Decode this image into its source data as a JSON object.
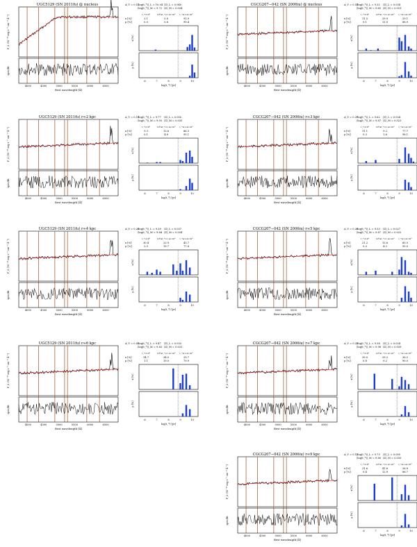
{
  "colors": {
    "observed": "#000000",
    "model": "#d01010",
    "line_mark": "#a8643c",
    "bar": "#1a3ccc"
  },
  "labels": {
    "flux_axis": "F_λ (10⁻¹⁶ erg s⁻¹ cm⁻² Å⁻¹)",
    "ratio_axis": "spec/fit",
    "wave_axis": "Rest wavelength [Å]",
    "x_pop": "x [%]",
    "mu_pop": "μ [%]",
    "age_axis": "log(t_*) [yr]",
    "bins_header": [
      "t_*<10⁸",
      "10⁸≤t_*<1.4×10⁹",
      "t_*≥1.4×10⁹"
    ]
  },
  "panels": [
    {
      "title": "UGC5129 (SN 2011fu) @ nucleus",
      "av": "A_V = 0.12",
      "ltx": "⟨log(t_*)⟩_L = 10.04",
      "ltm": "⟨log(t_*)⟩_M = 9.72",
      "zl": "⟨Z⟩_L = 0.040",
      "zm": "⟨Z⟩_M = 0.034",
      "xrow": [
        "2.1",
        "5.8",
        "91.9"
      ],
      "murow": [
        "0.0",
        "0.6",
        "99.4"
      ],
      "xbars": [
        [
          6.9,
          2
        ],
        [
          9.6,
          7
        ],
        [
          9.8,
          12
        ],
        [
          10.0,
          30
        ],
        [
          10.2,
          6
        ]
      ],
      "mubars": [
        [
          9.8,
          4
        ],
        [
          10.0,
          25
        ],
        [
          10.2,
          10
        ]
      ]
    },
    {
      "title": "CGCG207−042 (SN 2006iu) @ nucleus",
      "av": "A_V = 0.51",
      "ltx": "⟨log(t_*)⟩_L = 9.32",
      "ltm": "⟨log(t_*)⟩_M = 9.65",
      "zl": "⟨Z⟩_L = 0.034",
      "zm": "⟨Z⟩_M = 0.031",
      "xrow": [
        "11.5",
        "29.9",
        "29.1"
      ],
      "murow": [
        "0.1",
        "11.0",
        "88.9"
      ],
      "xbars": [
        [
          6.2,
          4
        ],
        [
          6.6,
          1
        ],
        [
          7.2,
          4
        ],
        [
          9.0,
          25
        ],
        [
          9.2,
          18
        ],
        [
          9.5,
          30
        ],
        [
          9.8,
          8
        ],
        [
          10.0,
          4
        ]
      ],
      "mubars": [
        [
          9.0,
          3
        ],
        [
          9.2,
          5
        ],
        [
          9.5,
          30
        ],
        [
          9.8,
          12
        ],
        [
          10.0,
          4
        ]
      ]
    },
    {
      "title": "UGC5129 (SN 2011fu) r≈2 kpc",
      "av": "A_V = 0.11",
      "ltx": "⟨log(t_*)⟩_L = 9.77",
      "ltm": "⟨log(t_*)⟩_M = 9.93",
      "zl": "⟨Z⟩_L = 0.050",
      "zm": "⟨Z⟩_M = 0.035",
      "xrow": [
        "9.3",
        "13.6",
        "66.3"
      ],
      "murow": [
        "0.1",
        "4.8",
        "95.1"
      ],
      "xbars": [
        [
          6.2,
          1
        ],
        [
          7.0,
          2
        ],
        [
          7.3,
          2
        ],
        [
          9.0,
          6
        ],
        [
          9.2,
          4
        ],
        [
          9.5,
          20
        ],
        [
          9.8,
          24
        ],
        [
          10.0,
          12
        ]
      ],
      "mubars": [
        [
          9.0,
          2
        ],
        [
          9.5,
          8
        ],
        [
          9.8,
          22
        ],
        [
          10.0,
          14
        ]
      ]
    },
    {
      "title": "CGCG207−042 (SN 2006iu) r≈3 kpc",
      "av": "A_V = 0.27",
      "ltx": "⟨log(t_*)⟩_L = 9.62",
      "ltm": "⟨log(t_*)⟩_M = 9.87",
      "zl": "⟨Z⟩_L = 0.024",
      "zm": "⟨Z⟩_M = 0.023",
      "xrow": [
        "11.1",
        "9.2",
        "77.7"
      ],
      "murow": [
        "0.3",
        "1.6",
        "98.1"
      ],
      "xbars": [
        [
          6.2,
          4
        ],
        [
          7.0,
          6
        ],
        [
          9.0,
          8
        ],
        [
          9.5,
          30
        ],
        [
          9.8,
          18
        ],
        [
          10.0,
          10
        ],
        [
          10.2,
          3
        ]
      ],
      "mubars": [
        [
          9.5,
          20
        ],
        [
          9.8,
          15
        ],
        [
          10.0,
          6
        ]
      ]
    },
    {
      "title": "UGC5129 (SN 2011fu) r≈4 kpc",
      "av": "A_V = 0.26",
      "ltx": "⟨log(t_*)⟩_L = 9.39",
      "ltm": "⟨log(t_*)⟩_M = 9.84",
      "zl": "⟨Z⟩_L = 0.037",
      "zm": "⟨Z⟩_M = 0.034",
      "xrow": [
        "30.4",
        "23.9",
        "43.7"
      ],
      "murow": [
        "2.5",
        "19.7",
        "77.8"
      ],
      "xbars": [
        [
          6.2,
          6
        ],
        [
          6.6,
          4
        ],
        [
          7.0,
          10
        ],
        [
          7.3,
          6
        ],
        [
          8.4,
          20
        ],
        [
          8.7,
          8
        ],
        [
          9.0,
          22
        ],
        [
          9.2,
          8
        ],
        [
          9.5,
          28
        ],
        [
          9.8,
          14
        ]
      ],
      "mubars": [
        [
          9.0,
          8
        ],
        [
          9.2,
          4
        ],
        [
          9.5,
          20
        ],
        [
          9.8,
          14
        ]
      ]
    },
    {
      "title": "CGCG207−042 (SN 2006iu) r≈5 kpc",
      "av": "A_V = 0.26",
      "ltx": "⟨log(t_*)⟩_L = 9.33",
      "ltm": "⟨log(t_*)⟩_M = 9.87",
      "zl": "⟨Z⟩_L = 0.027",
      "zm": "⟨Z⟩_M = 0.022",
      "xrow": [
        "21.2",
        "13.6",
        "60.5"
      ],
      "murow": [
        "0.3",
        "4.2",
        "95.0"
      ],
      "xbars": [
        [
          6.2,
          6
        ],
        [
          7.0,
          8
        ],
        [
          8.4,
          6
        ],
        [
          9.0,
          10
        ],
        [
          9.2,
          34
        ],
        [
          9.5,
          28
        ],
        [
          9.8,
          6
        ],
        [
          10.0,
          4
        ]
      ],
      "mubars": [
        [
          9.2,
          8
        ],
        [
          9.5,
          30
        ],
        [
          9.8,
          20
        ],
        [
          10.0,
          8
        ]
      ]
    },
    {
      "title": "UGC5129 (SN 2011fu) r≈6 kpc",
      "av": "A_V = 0.02",
      "ltx": "⟨log(t_*)⟩_L = 9.47",
      "ltm": "⟨log(t_*)⟩_M = 9.83",
      "zl": "⟨Z⟩_L = 0.032",
      "zm": "⟨Z⟩_M = 0.031",
      "xrow": [
        "14.7",
        "34.5",
        "29.7"
      ],
      "murow": [
        "1.1",
        "19.0",
        "79.9"
      ],
      "xbars": [
        [
          8.4,
          40
        ],
        [
          9.0,
          12
        ],
        [
          9.2,
          28
        ],
        [
          9.5,
          30
        ],
        [
          9.8,
          8
        ]
      ],
      "mubars": [
        [
          9.2,
          6
        ],
        [
          9.5,
          22
        ],
        [
          9.8,
          14
        ]
      ]
    },
    {
      "title": "CGCG207−042 (SN 2006iu) r≈7 kpc",
      "av": "A_V = 0.23",
      "ltx": "⟨log(t_*)⟩_L = 9.38",
      "ltm": "⟨log(t_*)⟩_M = 9.98",
      "zl": "⟨Z⟩_L = 0.024",
      "zm": "⟨Z⟩_M = 0.039",
      "xrow": [
        "39.0",
        "29.2",
        "36.2"
      ],
      "murow": [
        "0.8",
        "9.2",
        "90.0"
      ],
      "xbars": [
        [
          6.9,
          30
        ],
        [
          8.4,
          20
        ],
        [
          9.0,
          6
        ],
        [
          9.2,
          24
        ],
        [
          9.5,
          18
        ],
        [
          9.8,
          10
        ]
      ],
      "mubars": [
        [
          9.2,
          4
        ],
        [
          9.5,
          20
        ],
        [
          9.8,
          8
        ]
      ]
    },
    {
      "title": "CGCG207−042 (SN 2006iu) r≈9 kpc",
      "av": "A_V = 0.15",
      "ltx": "⟨log(t_*)⟩_L = 9.73",
      "ltm": "⟨log(t_*)⟩_M = 9.80",
      "zl": "⟨Z⟩_L = 0.005",
      "zm": "⟨Z⟩_M = 0.035",
      "xrow": [
        "31.6",
        "41.6",
        "26.8"
      ],
      "murow": [
        "0.4",
        "12.9",
        "86.7"
      ],
      "xbars": [
        [
          6.9,
          32
        ],
        [
          8.4,
          44
        ],
        [
          9.2,
          12
        ],
        [
          9.5,
          30
        ],
        [
          9.8,
          10
        ]
      ],
      "mubars": [
        [
          9.2,
          4
        ],
        [
          9.5,
          26
        ],
        [
          9.8,
          6
        ]
      ]
    }
  ]
}
